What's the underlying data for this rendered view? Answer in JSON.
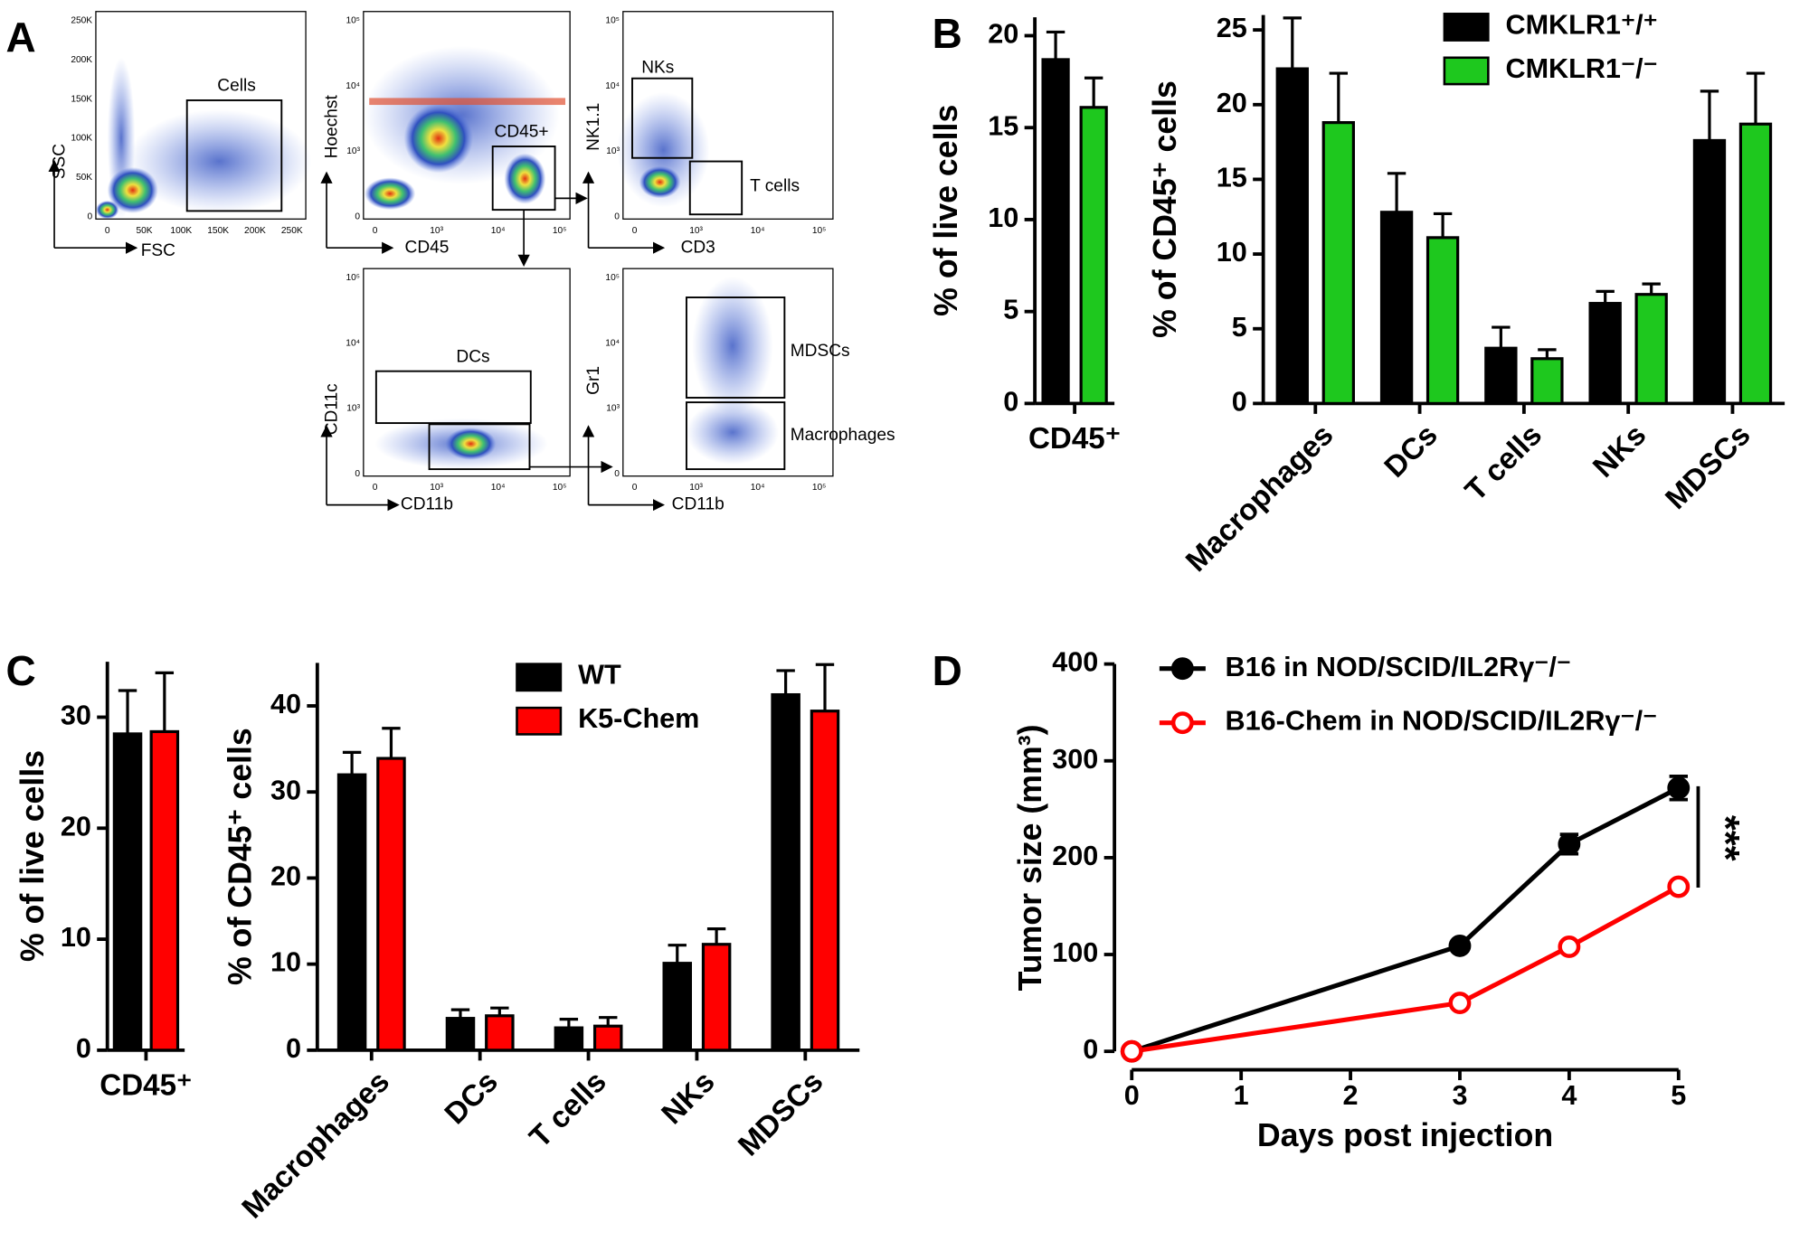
{
  "flow_cytometry": {
    "panel": "A",
    "plots": [
      {
        "x_label": "FSC",
        "y_label": "SSC",
        "xticks": [
          "0",
          "50K",
          "100K",
          "150K",
          "200K",
          "250K"
        ],
        "yticks": [
          "250K",
          "200K",
          "150K",
          "100K",
          "50K",
          "0"
        ],
        "gates": [
          "Cells"
        ]
      },
      {
        "x_label": "CD45",
        "y_label": "Hoechst",
        "xticks": [
          "0",
          "10³",
          "10⁴",
          "10⁵"
        ],
        "yticks": [
          "10⁵",
          "10⁴",
          "10³",
          "0"
        ],
        "gates": [
          "CD45+"
        ]
      },
      {
        "x_label": "CD3",
        "y_label": "NK1.1",
        "xticks": [
          "0",
          "10³",
          "10⁴",
          "10⁵"
        ],
        "yticks": [
          "10⁵",
          "10⁴",
          "10³",
          "0"
        ],
        "gates": [
          "NKs",
          "T cells"
        ]
      },
      {
        "x_label": "CD11b",
        "y_label": "CD11c",
        "xticks": [
          "0",
          "10³",
          "10⁴",
          "10⁵"
        ],
        "yticks": [
          "10⁵",
          "10⁴",
          "10³",
          "0"
        ],
        "gates": [
          "DCs"
        ]
      },
      {
        "x_label": "CD11b",
        "y_label": "Gr1",
        "xticks": [
          "0",
          "10³",
          "10⁴",
          "10⁵"
        ],
        "yticks": [
          "10⁵",
          "10⁴",
          "10³",
          "0"
        ],
        "gates": [
          "MDSCs",
          "Macrophages"
        ]
      }
    ]
  },
  "chart_data": [
    {
      "type": "bar",
      "panel": "B",
      "y_label": "% of live cells",
      "categories": [
        "CD45⁺"
      ],
      "series": [
        {
          "color": "#000000",
          "values": [
            18.7
          ],
          "errors": [
            1.5
          ]
        },
        {
          "color": "#1ec81e",
          "values": [
            16.1
          ],
          "errors": [
            1.6
          ]
        }
      ],
      "ylim": [
        0,
        21
      ],
      "yticks": [
        0,
        5,
        10,
        15,
        20
      ]
    },
    {
      "type": "bar",
      "y_label": "% of CD45⁺ cells",
      "categories": [
        "Macrophages",
        "DCs",
        "T cells",
        "NKs",
        "MDSCs"
      ],
      "series": [
        {
          "name": "CMKLR1⁺/⁺",
          "color": "#000000",
          "values": [
            22.4,
            12.8,
            3.7,
            6.7,
            17.6
          ],
          "errors": [
            3.4,
            2.6,
            1.4,
            0.8,
            3.3
          ]
        },
        {
          "name": "CMKLR1⁻/⁻",
          "color": "#1ec81e",
          "values": [
            18.8,
            11.1,
            3.0,
            7.3,
            18.7
          ],
          "errors": [
            3.3,
            1.6,
            0.6,
            0.7,
            3.4
          ]
        }
      ],
      "ylim": [
        0,
        26
      ],
      "yticks": [
        0,
        5,
        10,
        15,
        20,
        25
      ],
      "legend": "top-right"
    },
    {
      "type": "bar",
      "panel": "C",
      "y_label": "% of live cells",
      "categories": [
        "CD45⁺"
      ],
      "series": [
        {
          "color": "#000000",
          "values": [
            28.5
          ],
          "errors": [
            3.9
          ]
        },
        {
          "color": "#ff0000",
          "values": [
            28.7
          ],
          "errors": [
            5.3
          ]
        }
      ],
      "ylim": [
        0,
        35
      ],
      "yticks": [
        0,
        10,
        20,
        30
      ]
    },
    {
      "type": "bar",
      "y_label": "% of CD45⁺ cells",
      "categories": [
        "Macrophages",
        "DCs",
        "T cells",
        "NKs",
        "MDSCs"
      ],
      "series": [
        {
          "name": "WT",
          "color": "#000000",
          "values": [
            32.0,
            3.7,
            2.6,
            10.1,
            41.3
          ],
          "errors": [
            2.6,
            1.0,
            1.0,
            2.1,
            2.8
          ]
        },
        {
          "name": "K5-Chem",
          "color": "#ff0000",
          "values": [
            33.9,
            4.0,
            2.8,
            12.3,
            39.4
          ],
          "errors": [
            3.5,
            0.9,
            1.0,
            1.8,
            5.4
          ]
        }
      ],
      "ylim": [
        0,
        45
      ],
      "yticks": [
        0,
        10,
        20,
        30,
        40
      ],
      "legend": "top-center"
    },
    {
      "type": "line",
      "panel": "D",
      "x_label": "Days post injection",
      "y_label": "Tumor size (mm³)",
      "x": [
        0,
        3,
        4,
        5
      ],
      "series": [
        {
          "name": "B16 in NOD/SCID/IL2Rγ⁻/⁻",
          "color": "#000000",
          "marker": "filled",
          "values": [
            0,
            109,
            214,
            272
          ],
          "errors": [
            null,
            null,
            10,
            12
          ]
        },
        {
          "name": "B16-Chem in NOD/SCID/IL2Rγ⁻/⁻",
          "color": "#ff0000",
          "marker": "open",
          "values": [
            0,
            50,
            108,
            170
          ]
        }
      ],
      "xlim": [
        0,
        5
      ],
      "xticks": [
        0,
        1,
        2,
        3,
        4,
        5
      ],
      "ylim": [
        0,
        400
      ],
      "yticks": [
        0,
        100,
        200,
        300,
        400
      ],
      "annotation": "***",
      "legend": "top-left"
    }
  ]
}
